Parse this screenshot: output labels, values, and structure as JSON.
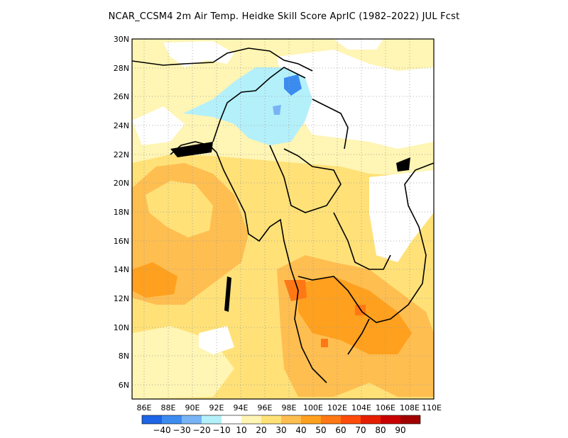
{
  "title": "NCAR_CCSM4  2m Air Temp. Heidke Skill Score AprIC (1982–2022) JUL Fcst",
  "map": {
    "lon_range": [
      85,
      110
    ],
    "lat_range": [
      5,
      30
    ],
    "x_ticks": [
      "86E",
      "88E",
      "90E",
      "92E",
      "94E",
      "96E",
      "98E",
      "100E",
      "102E",
      "104E",
      "106E",
      "108E",
      "110E"
    ],
    "y_ticks": [
      "6N",
      "8N",
      "10N",
      "12N",
      "14N",
      "16N",
      "18N",
      "20N",
      "22N",
      "24N",
      "26N",
      "28N",
      "30N"
    ],
    "grid": "dotted"
  },
  "colorbar": {
    "colors": [
      "#1e64e6",
      "#3c8cf0",
      "#78b4f5",
      "#b4f0fa",
      "#ffffff",
      "#fff5b4",
      "#ffe178",
      "#ffbe50",
      "#ffa01e",
      "#ff7814",
      "#ff4b0a",
      "#e61e00",
      "#c80000",
      "#a00000"
    ],
    "labels": [
      "−40",
      "−30",
      "−20",
      "−10",
      "10",
      "20",
      "30",
      "40",
      "50",
      "60",
      "70",
      "80",
      "90"
    ]
  }
}
